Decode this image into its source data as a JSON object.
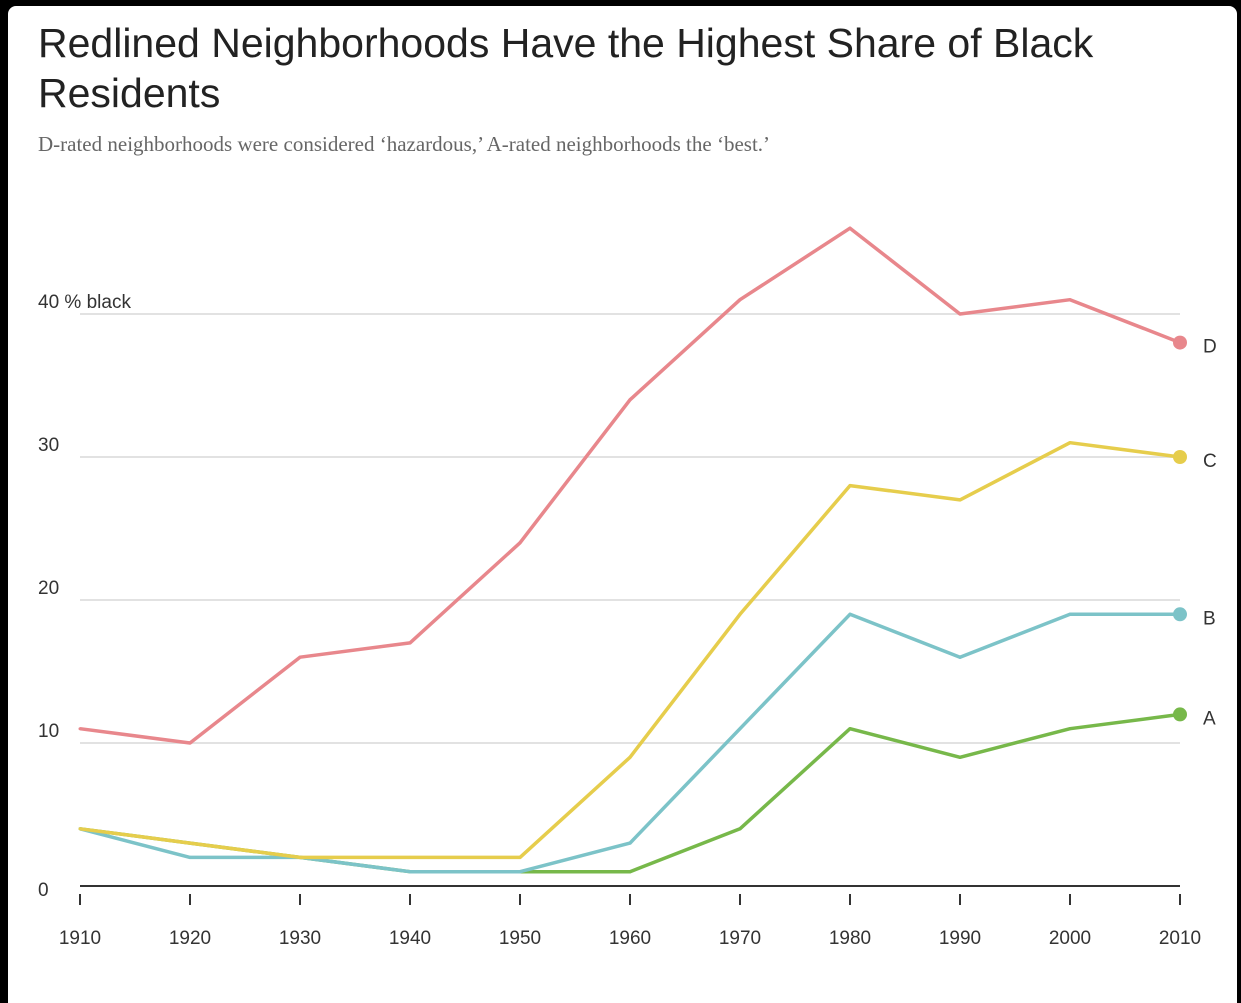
{
  "chart_data": {
    "type": "line",
    "title": "Redlined Neighborhoods Have the Highest Share of Black Residents",
    "subtitle": "D-rated neighborhoods were considered ‘hazardous,’ A-rated neighborhoods the ‘best.’",
    "x": [
      1910,
      1920,
      1930,
      1940,
      1950,
      1960,
      1970,
      1980,
      1990,
      2000,
      2010
    ],
    "x_tick_labels": [
      "1910",
      "1920",
      "1930",
      "1940",
      "1950",
      "1960",
      "1970",
      "1980",
      "1990",
      "2000",
      "2010"
    ],
    "y_ticks": [
      0,
      10,
      20,
      30,
      40
    ],
    "y_tick_labels": [
      "0",
      "10",
      "20",
      "30",
      "40 % black"
    ],
    "ylim": [
      0,
      46
    ],
    "grid": true,
    "series": [
      {
        "name": "D",
        "color": "#e8878c",
        "values": [
          11,
          10,
          16,
          17,
          24,
          34,
          41,
          46,
          40,
          41,
          38
        ]
      },
      {
        "name": "C",
        "color": "#e6cd4c",
        "values": [
          4,
          3,
          2,
          2,
          2,
          9,
          19,
          28,
          27,
          31,
          30
        ]
      },
      {
        "name": "B",
        "color": "#7cc3c8",
        "values": [
          4,
          2,
          2,
          1,
          1,
          3,
          11,
          19,
          16,
          19,
          19
        ]
      },
      {
        "name": "A",
        "color": "#77b84a",
        "values": [
          4,
          3,
          2,
          1,
          1,
          1,
          4,
          11,
          9,
          11,
          12
        ]
      }
    ]
  }
}
